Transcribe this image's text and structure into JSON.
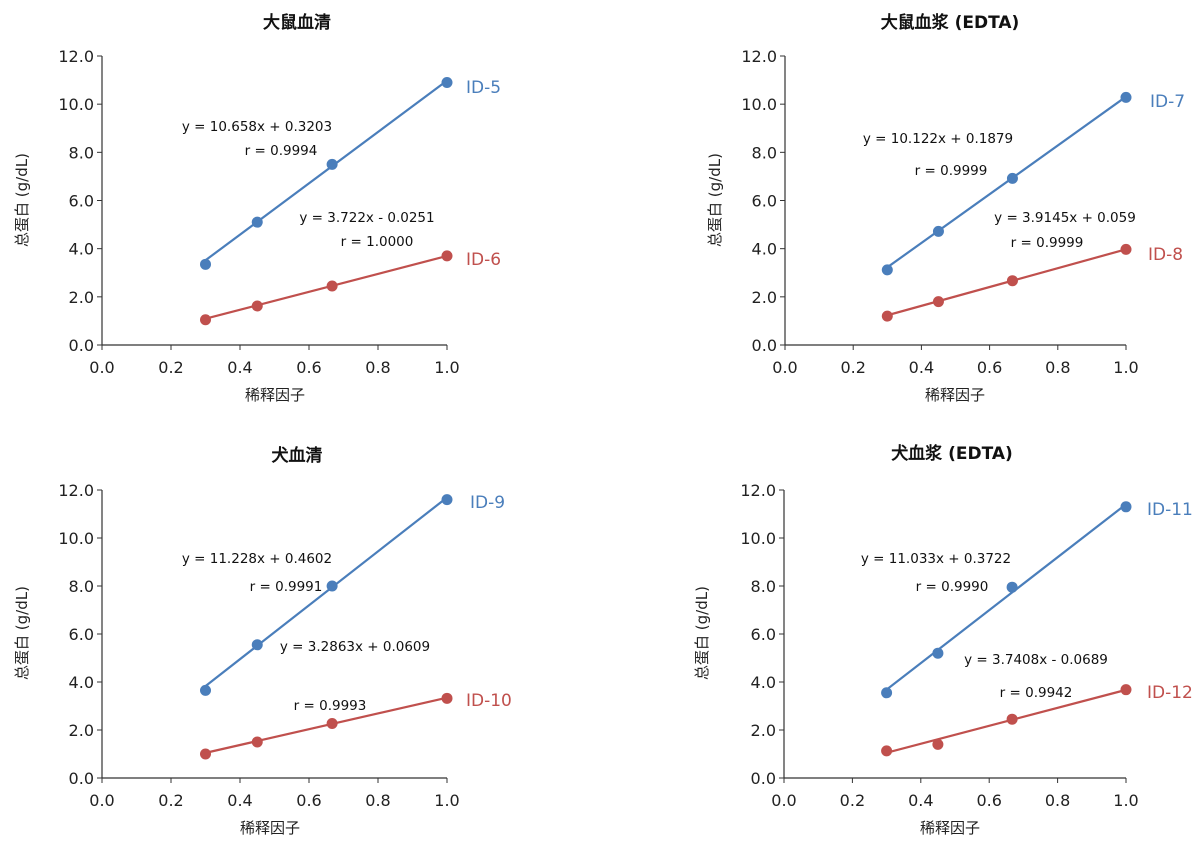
{
  "chart_data": [
    {
      "type": "line",
      "title": "大鼠血清",
      "xlabel": "稀释因子",
      "ylabel": "总蛋白 (g/dL)",
      "xlim": [
        0,
        1.0
      ],
      "ylim": [
        0,
        12.0
      ],
      "xticks": [
        "0.0",
        "0.2",
        "0.4",
        "0.6",
        "0.8",
        "1.0"
      ],
      "yticks": [
        "0.0",
        "2.0",
        "4.0",
        "6.0",
        "8.0",
        "10.0",
        "12.0"
      ],
      "x": [
        0.3,
        0.45,
        0.667,
        1.0
      ],
      "series": [
        {
          "name": "ID-5",
          "color": "#4a7ebb",
          "values": [
            3.35,
            5.1,
            7.5,
            10.9
          ],
          "slope": 10.658,
          "intercept": 0.3203,
          "equation": "y = 10.658x + 0.3203",
          "r": "r = 0.9994"
        },
        {
          "name": "ID-6",
          "color": "#c0504d",
          "values": [
            1.05,
            1.62,
            2.45,
            3.7
          ],
          "slope": 3.722,
          "intercept": -0.0251,
          "equation": "y = 3.722x - 0.0251",
          "r": "r = 1.0000"
        }
      ]
    },
    {
      "type": "line",
      "title": "大鼠血浆 (EDTA)",
      "xlabel": "稀释因子",
      "ylabel": "总蛋白 (g/dL)",
      "xlim": [
        0,
        1.0
      ],
      "ylim": [
        0,
        12.0
      ],
      "xticks": [
        "0.0",
        "0.2",
        "0.4",
        "0.6",
        "0.8",
        "1.0"
      ],
      "yticks": [
        "0.0",
        "2.0",
        "4.0",
        "6.0",
        "8.0",
        "10.0",
        "12.0"
      ],
      "x": [
        0.3,
        0.45,
        0.667,
        1.0
      ],
      "series": [
        {
          "name": "ID-7",
          "color": "#4a7ebb",
          "values": [
            3.12,
            4.72,
            6.92,
            10.28
          ],
          "slope": 10.122,
          "intercept": 0.1879,
          "equation": "y = 10.122x + 0.1879",
          "r": "r = 0.9999"
        },
        {
          "name": "ID-8",
          "color": "#c0504d",
          "values": [
            1.2,
            1.8,
            2.67,
            3.97
          ],
          "slope": 3.9145,
          "intercept": 0.059,
          "equation": "y = 3.9145x + 0.059",
          "r": "r = 0.9999"
        }
      ]
    },
    {
      "type": "line",
      "title": "犬血清",
      "xlabel": "稀释因子",
      "ylabel": "总蛋白 (g/dL)",
      "xlim": [
        0,
        1.0
      ],
      "ylim": [
        0,
        12.0
      ],
      "xticks": [
        "0.0",
        "0.2",
        "0.4",
        "0.6",
        "0.8",
        "1.0"
      ],
      "yticks": [
        "0.0",
        "2.0",
        "4.0",
        "6.0",
        "8.0",
        "10.0",
        "12.0"
      ],
      "x": [
        0.3,
        0.45,
        0.667,
        1.0
      ],
      "series": [
        {
          "name": "ID-9",
          "color": "#4a7ebb",
          "values": [
            3.65,
            5.55,
            8.0,
            11.6
          ],
          "slope": 11.228,
          "intercept": 0.4602,
          "equation": "y = 11.228x + 0.4602",
          "r": "r = 0.9991"
        },
        {
          "name": "ID-10",
          "color": "#c0504d",
          "values": [
            1.0,
            1.5,
            2.27,
            3.32
          ],
          "slope": 3.2863,
          "intercept": 0.0609,
          "equation": "y = 3.2863x + 0.0609",
          "r": "r = 0.9993"
        }
      ]
    },
    {
      "type": "line",
      "title": "犬血浆 (EDTA)",
      "xlabel": "稀释因子",
      "ylabel": "总蛋白 (g/dL)",
      "xlim": [
        0,
        1.0
      ],
      "ylim": [
        0,
        12.0
      ],
      "xticks": [
        "0.0",
        "0.2",
        "0.4",
        "0.6",
        "0.8",
        "1.0"
      ],
      "yticks": [
        "0.0",
        "2.0",
        "4.0",
        "6.0",
        "8.0",
        "10.0",
        "12.0"
      ],
      "x": [
        0.3,
        0.45,
        0.667,
        1.0
      ],
      "series": [
        {
          "name": "ID-11",
          "color": "#4a7ebb",
          "values": [
            3.55,
            5.2,
            7.95,
            11.3
          ],
          "slope": 11.033,
          "intercept": 0.3722,
          "equation": "y = 11.033x + 0.3722",
          "r": "r = 0.9990"
        },
        {
          "name": "ID-12",
          "color": "#c0504d",
          "values": [
            1.13,
            1.4,
            2.45,
            3.68
          ],
          "slope": 3.7408,
          "intercept": -0.0689,
          "equation": "y = 3.7408x - 0.0689",
          "r": "r = 0.9942"
        }
      ]
    }
  ]
}
